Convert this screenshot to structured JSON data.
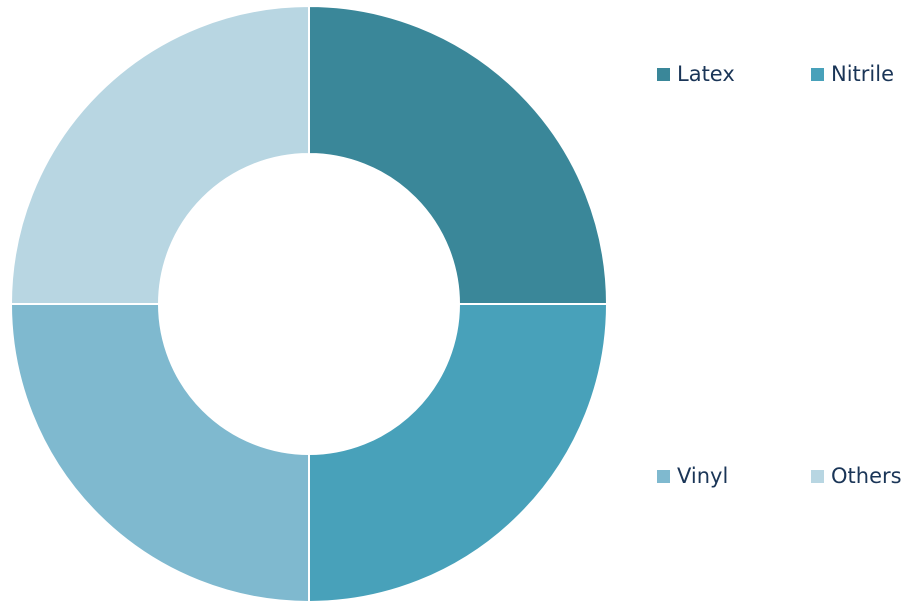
{
  "chart_data": {
    "type": "pie",
    "donut": true,
    "title": "",
    "categories": [
      "Latex",
      "Nitrile",
      "Vinyl",
      "Others"
    ],
    "values": [
      25,
      25,
      25,
      25
    ],
    "colors": [
      "#3a8799",
      "#48a1ba",
      "#7fb9cf",
      "#b8d6e2"
    ],
    "legend_position": "right",
    "legend_text_color": "#1a3557"
  }
}
